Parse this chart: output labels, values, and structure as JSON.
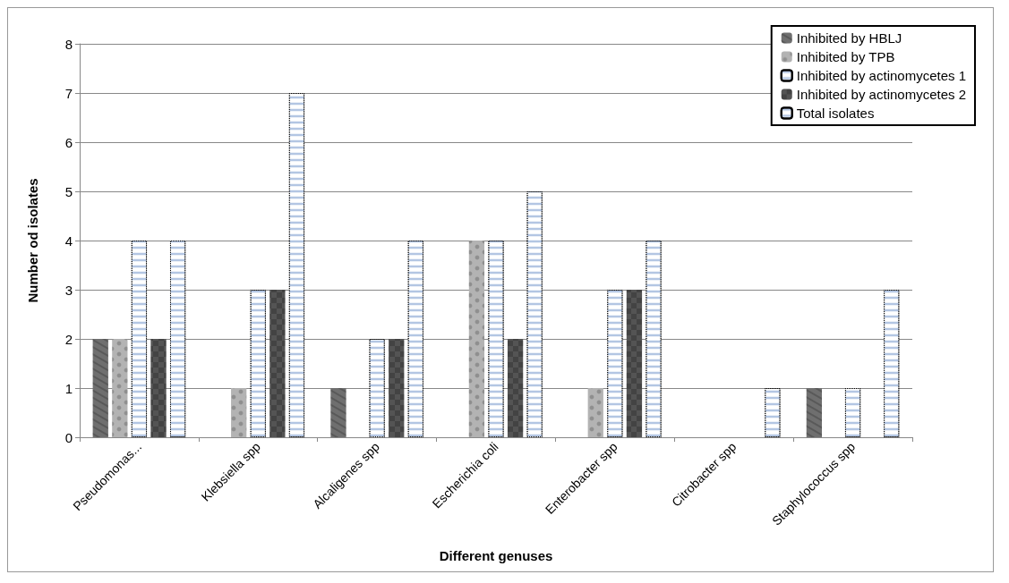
{
  "chart_data": {
    "type": "bar",
    "xlabel": "Different genuses",
    "ylabel": "Number od isolates",
    "categories": [
      "Pseudomonas...",
      "Klebsiella spp",
      "Alcaligenes spp",
      "Escherichia coli",
      "Enterobacter spp",
      "Citrobacter spp",
      "Staphylococcus spp"
    ],
    "series": [
      {
        "name": "Inhibited by HBLJ",
        "color": "#6f6f6f",
        "values": [
          2,
          0,
          1,
          0,
          0,
          0,
          1
        ]
      },
      {
        "name": "Inhibited by TPB",
        "color": "#b3b3b3",
        "values": [
          2,
          1,
          0,
          4,
          1,
          0,
          0
        ]
      },
      {
        "name": "Inhibited by actinomycetes 1",
        "color": "#ffffff",
        "values": [
          4,
          3,
          2,
          4,
          3,
          0,
          1
        ]
      },
      {
        "name": "Inhibited by actinomycetes 2",
        "color": "#545454",
        "values": [
          2,
          3,
          2,
          2,
          3,
          0,
          0
        ]
      },
      {
        "name": "Total isolates",
        "color": "#ffffff",
        "values": [
          4,
          7,
          4,
          5,
          4,
          1,
          3
        ]
      }
    ],
    "ylim": [
      0,
      8
    ],
    "yticks": [
      0,
      1,
      2,
      3,
      4,
      5,
      6,
      7,
      8
    ],
    "grid": "y",
    "legend": "top right"
  }
}
